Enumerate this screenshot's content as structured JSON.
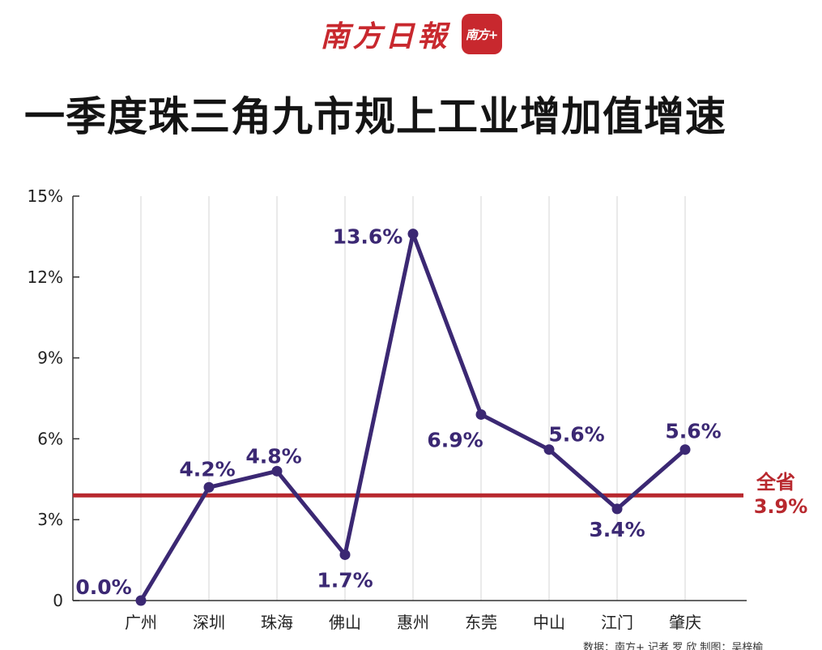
{
  "masthead": {
    "name": "南方日報",
    "app_logo": "南方+"
  },
  "title": "一季度珠三角九市规上工业增加值增速",
  "chart_data": {
    "type": "line",
    "categories": [
      "广州",
      "深圳",
      "珠海",
      "佛山",
      "惠州",
      "东莞",
      "中山",
      "江门",
      "肇庆"
    ],
    "series": [
      {
        "values": [
          0.0,
          4.2,
          4.8,
          1.7,
          13.6,
          6.9,
          5.6,
          3.4,
          5.6
        ],
        "labels": [
          "0.0%",
          "4.2%",
          "4.8%",
          "1.7%",
          "13.6%",
          "6.9%",
          "5.6%",
          "3.4%",
          "5.6%"
        ]
      }
    ],
    "ylim": [
      0,
      15
    ],
    "yticks": [
      0,
      3,
      6,
      9,
      12,
      15
    ],
    "ytick_labels": [
      "0",
      "3%",
      "6%",
      "9%",
      "12%",
      "15%"
    ],
    "vertical_grid": true,
    "reference_line": {
      "value": 3.9,
      "label_line1": "全省",
      "label_line2": "3.9%"
    },
    "colors": {
      "series": "#3b2873",
      "reference": "#b8282e",
      "grid": "#d4d4d4",
      "axis": "#333333"
    }
  },
  "credit": "数据：南方+  记者 罗 欣 制图：吴梓榆"
}
